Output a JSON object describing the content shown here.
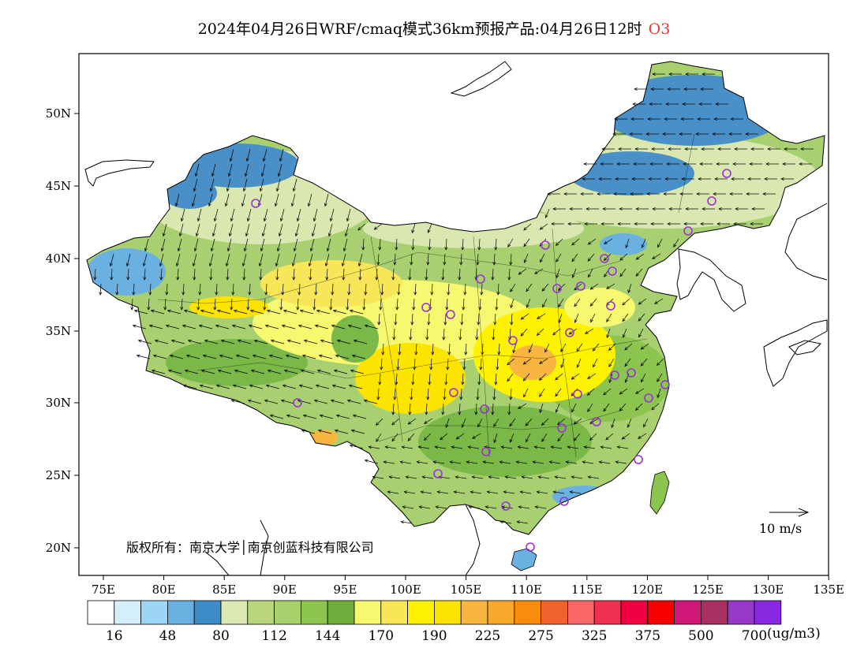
{
  "title": {
    "main": "2024年04月26日WRF/cmaq模式36km预报产品:04月26日12时",
    "species": "O3"
  },
  "map": {
    "lat_ticks": [
      "50N",
      "45N",
      "40N",
      "35N",
      "30N",
      "25N",
      "20N"
    ],
    "lon_ticks": [
      "75E",
      "80E",
      "85E",
      "90E",
      "95E",
      "100E",
      "105E",
      "110E",
      "115E",
      "120E",
      "125E",
      "130E",
      "135E"
    ],
    "copyright": "版权所有：南京大学│南京创蓝科技有限公司",
    "wind_reference": "10 m/s",
    "colors": {
      "blue": "#4a90c8",
      "light_green": "#d8e8b0",
      "mid_green": "#a8d070",
      "green": "#7ab848",
      "yellow": "#f8f060",
      "bright_yellow": "#fff200",
      "orange": "#f5a623",
      "station": "#9b30d9"
    }
  },
  "legend": {
    "colors": [
      "#ffffff",
      "#d4eefa",
      "#9dd6f5",
      "#6ab0e0",
      "#3d8cc8",
      "#dce9b4",
      "#b9d67e",
      "#a8d06c",
      "#8cc450",
      "#6fae3c",
      "#f6f870",
      "#f6e658",
      "#fff200",
      "#fde400",
      "#f8b640",
      "#f8a82a",
      "#f88c0c",
      "#f06230",
      "#f86868",
      "#f03050",
      "#f00040",
      "#f80000",
      "#d01878",
      "#a83060",
      "#9838c8",
      "#8828e0"
    ],
    "labels": [
      "16",
      "48",
      "80",
      "112",
      "144",
      "170",
      "190",
      "225",
      "275",
      "325",
      "375",
      "500",
      "700"
    ],
    "unit": "(ug/m3)"
  }
}
